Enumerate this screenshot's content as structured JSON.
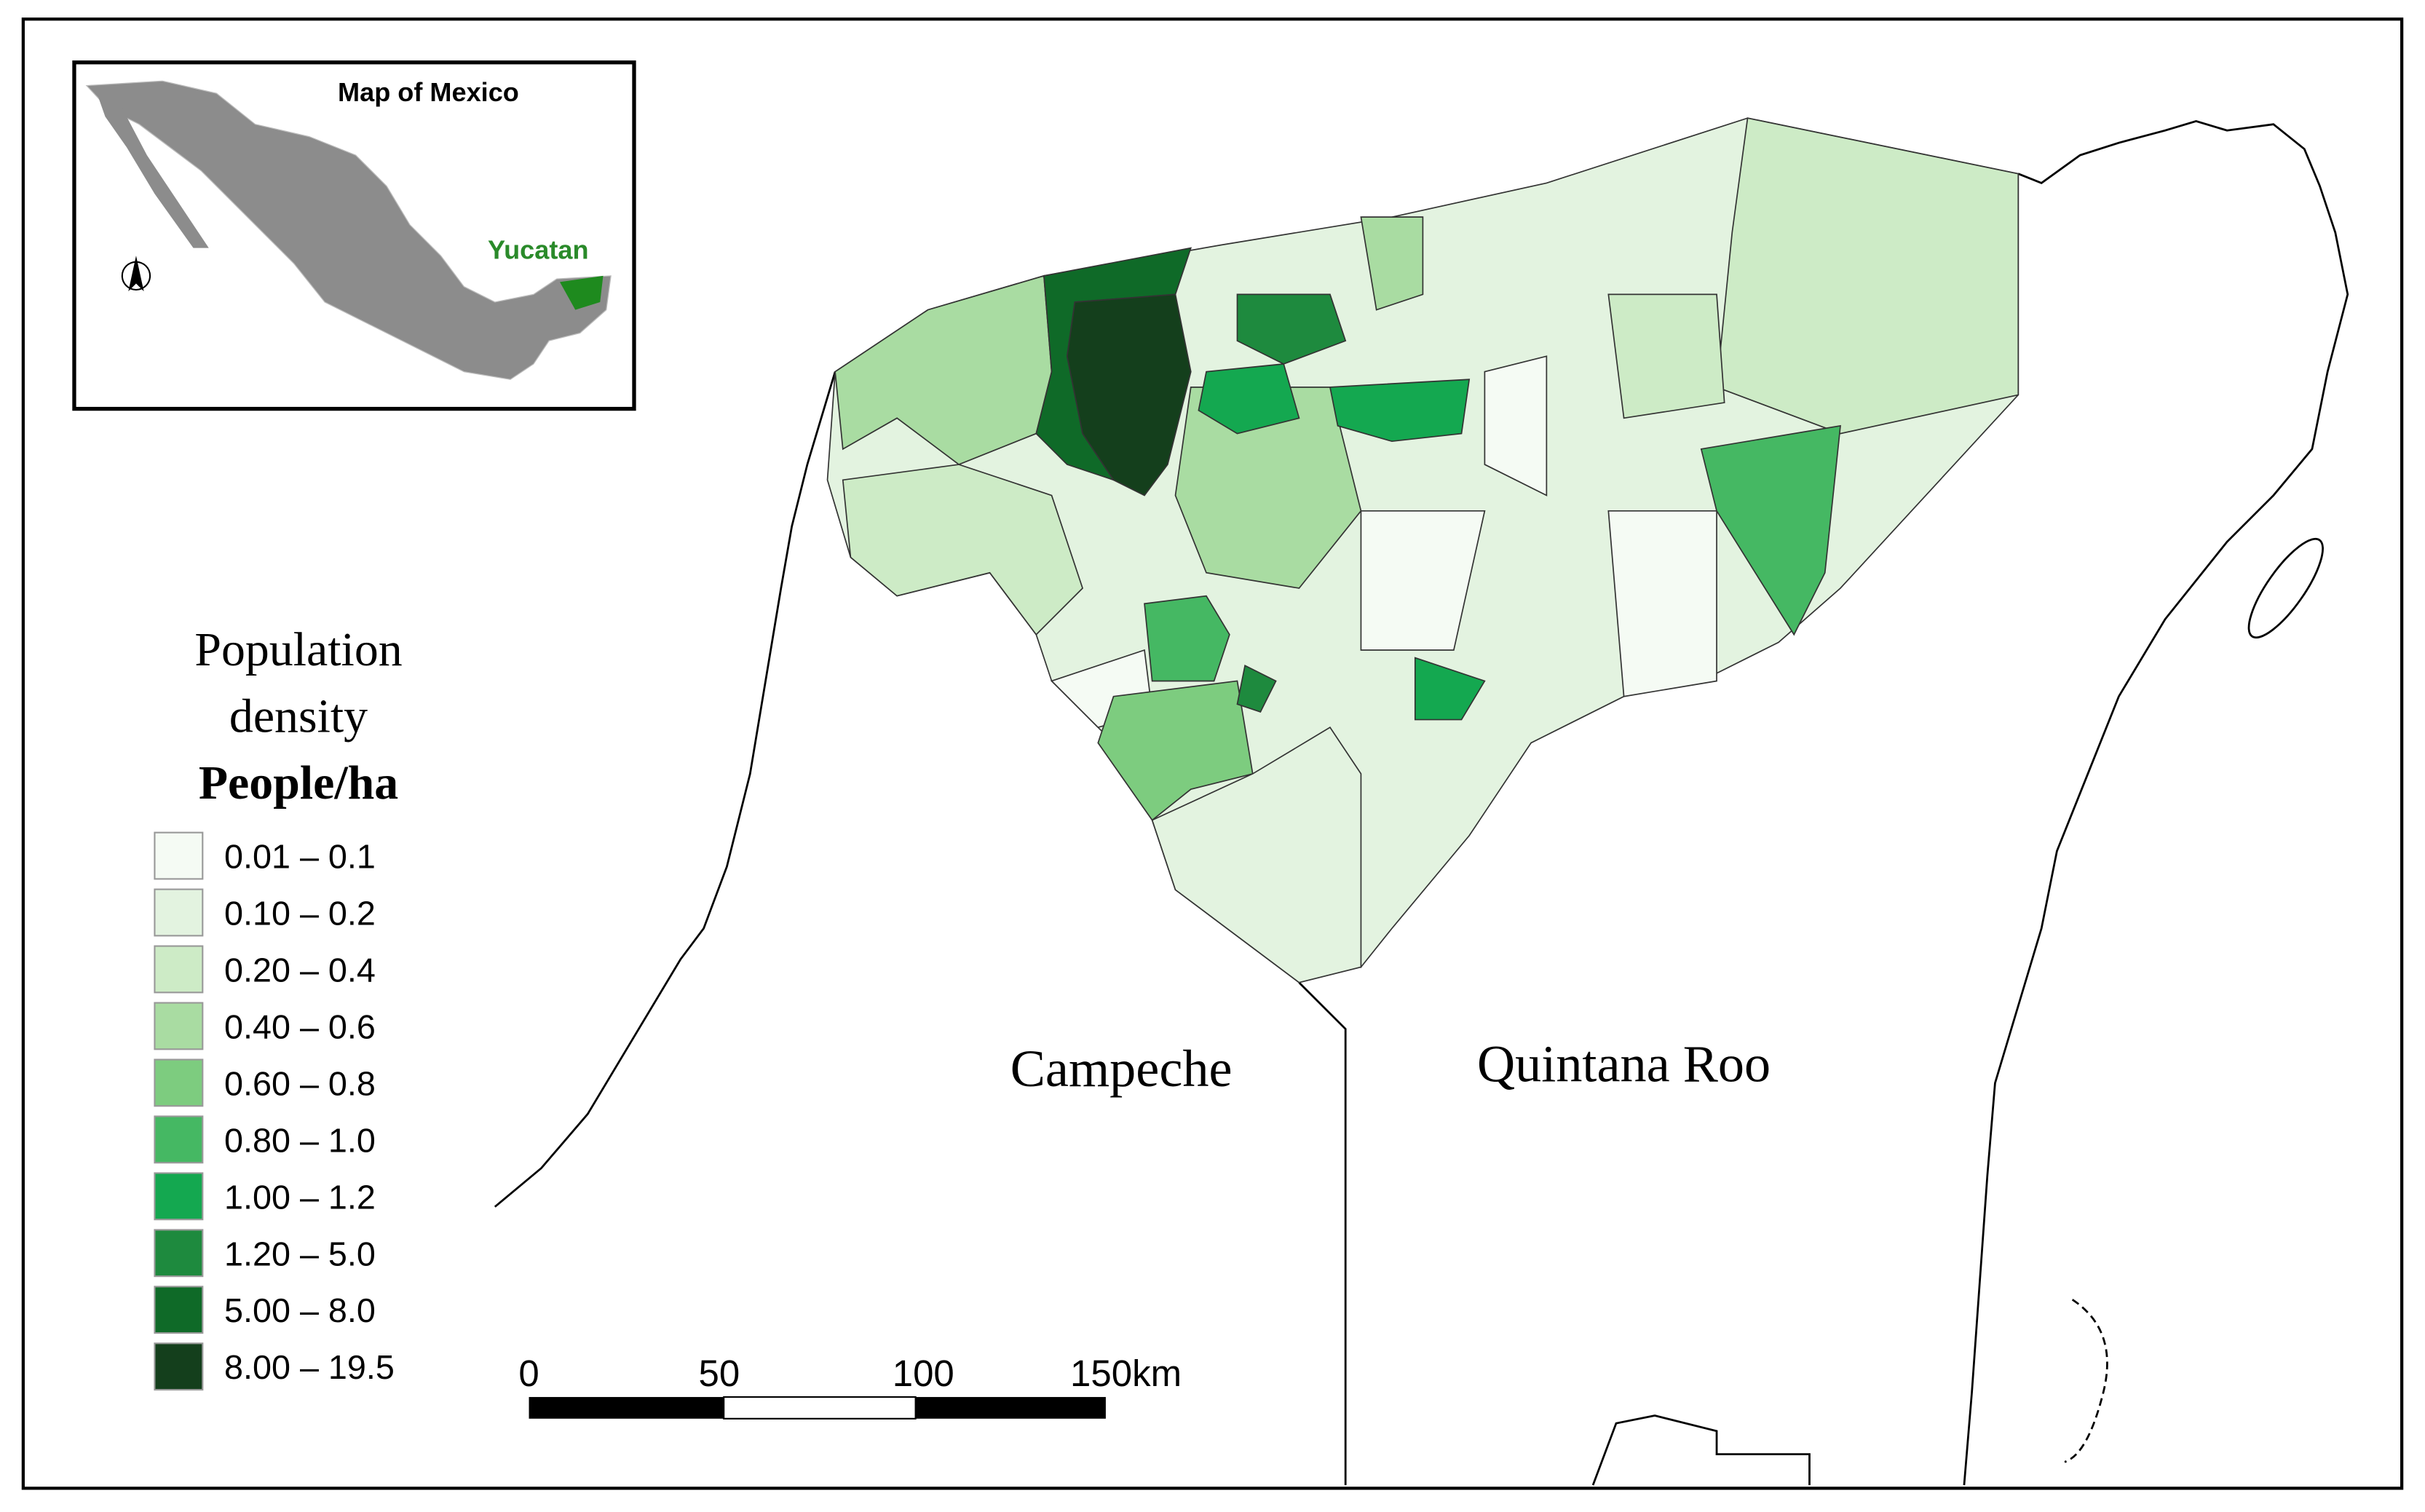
{
  "inset": {
    "title": "Map of Mexico",
    "highlight": "Yucatan"
  },
  "legend": {
    "title_lines": [
      "Population",
      "density"
    ],
    "unit": "People/ha",
    "items": [
      {
        "label": "0.01 – 0.1",
        "color": "#f5fbf4"
      },
      {
        "label": "0.10 – 0.2",
        "color": "#e3f3e0"
      },
      {
        "label": "0.20 – 0.4",
        "color": "#cdebc6"
      },
      {
        "label": "0.40 – 0.6",
        "color": "#a9dca2"
      },
      {
        "label": "0.60 – 0.8",
        "color": "#7dcc7f"
      },
      {
        "label": "0.80 – 1.0",
        "color": "#45b863"
      },
      {
        "label": "1.00 – 1.2",
        "color": "#14a850"
      },
      {
        "label": "1.20 – 5.0",
        "color": "#1e8a3e"
      },
      {
        "label": "5.00 – 8.0",
        "color": "#0f6a28"
      },
      {
        "label": "8.00 – 19.5",
        "color": "#143f1c"
      }
    ]
  },
  "places": {
    "campeche": "Campeche",
    "quintana_roo": "Quintana Roo"
  },
  "scale_bar": {
    "labels": [
      "0",
      "50",
      "100",
      "150km"
    ]
  }
}
